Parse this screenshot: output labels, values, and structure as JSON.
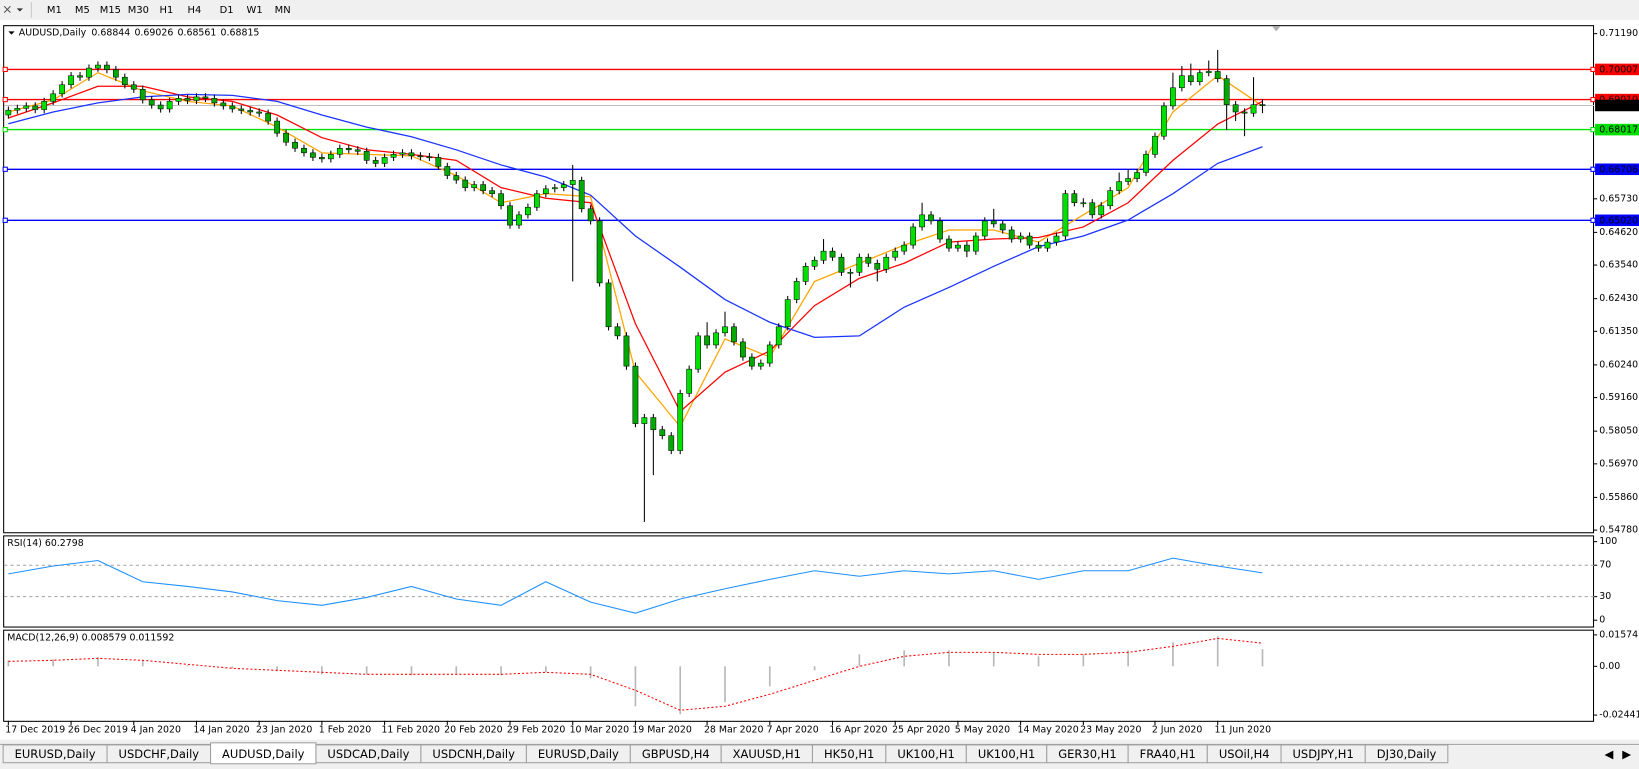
{
  "toolbar": [
    "M1",
    "M5",
    "M15",
    "M30",
    "H1",
    "H4",
    "D1",
    "W1",
    "MN"
  ],
  "tabs": [
    "EURUSD,Daily",
    "USDCHF,Daily",
    "AUDUSD,Daily",
    "USDCAD,Daily",
    "USDCNH,Daily",
    "EURUSD,Daily",
    "GBPUSD,H4",
    "XAUUSD,H1",
    "HK50,H1",
    "UK100,H1",
    "UK100,H1",
    "GER30,H1",
    "FRA40,H1",
    "USOil,H4",
    "USDJPY,H1",
    "DJ30,Daily"
  ],
  "active_tab": 2,
  "chart_data": [
    {
      "type": "candlestick",
      "title": "AUDUSD,Daily",
      "categories": [
        "17 Dec 2019",
        null,
        null,
        null,
        null,
        null,
        null,
        "26 Dec 2019",
        null,
        null,
        null,
        null,
        null,
        null,
        "4 Jan 2020",
        null,
        null,
        null,
        null,
        null,
        null,
        "14 Jan 2020",
        null,
        null,
        null,
        null,
        null,
        null,
        "23 Jan 2020",
        null,
        null,
        null,
        null,
        null,
        null,
        "1 Feb 2020",
        null,
        null,
        null,
        null,
        null,
        null,
        "11 Feb 2020",
        null,
        null,
        null,
        null,
        null,
        null,
        "20 Feb 2020",
        null,
        null,
        null,
        null,
        null,
        null,
        "29 Feb 2020",
        null,
        null,
        null,
        null,
        null,
        null,
        "10 Mar 2020",
        null,
        null,
        null,
        null,
        null,
        null,
        "19 Mar 2020",
        null,
        null,
        null,
        null,
        null,
        null,
        null,
        "28 Mar 2020",
        null,
        null,
        null,
        null,
        null,
        null,
        "7 Apr 2020",
        null,
        null,
        null,
        null,
        null,
        null,
        "16 Apr 2020",
        null,
        null,
        null,
        null,
        null,
        null,
        "25 Apr 2020",
        null,
        null,
        null,
        null,
        null,
        null,
        "5 May 2020",
        null,
        null,
        null,
        null,
        null,
        null,
        "14 May 2020",
        null,
        null,
        null,
        null,
        null,
        null,
        "23 May 2020",
        null,
        null,
        null,
        null,
        null,
        null,
        null,
        "2 Jun 2020",
        null,
        null,
        null,
        null,
        null,
        null,
        "11 Jun 2020",
        null,
        null,
        null,
        null,
        null
      ],
      "open": [
        0.685,
        0.6866,
        0.6872,
        0.688,
        0.6868,
        0.6895,
        0.692,
        0.695,
        0.698,
        0.6975,
        0.7005,
        0.7015,
        0.7,
        0.6975,
        0.695,
        0.6935,
        0.69,
        0.6883,
        0.687,
        0.6895,
        0.6905,
        0.6898,
        0.691,
        0.6905,
        0.689,
        0.688,
        0.687,
        0.6865,
        0.686,
        0.6856,
        0.683,
        0.679,
        0.676,
        0.674,
        0.6725,
        0.671,
        0.6705,
        0.672,
        0.674,
        0.6735,
        0.673,
        0.67,
        0.669,
        0.671,
        0.672,
        0.6725,
        0.6715,
        0.6712,
        0.671,
        0.668,
        0.665,
        0.6635,
        0.661,
        0.662,
        0.66,
        0.659,
        0.655,
        0.6486,
        0.652,
        0.6545,
        0.659,
        0.6606,
        0.661,
        0.662,
        0.6634,
        0.654,
        0.65,
        0.6295,
        0.615,
        0.612,
        0.602,
        0.583,
        0.585,
        0.581,
        0.579,
        0.5741,
        0.593,
        0.601,
        0.612,
        0.609,
        0.613,
        0.615,
        0.61,
        0.605,
        0.602,
        0.603,
        0.609,
        0.615,
        0.624,
        0.63,
        0.635,
        0.637,
        0.64,
        0.638,
        0.633,
        0.633,
        0.638,
        0.636,
        0.634,
        0.638,
        0.64,
        0.642,
        0.648,
        0.652,
        0.65,
        0.644,
        0.641,
        0.642,
        0.64,
        0.645,
        0.65,
        0.649,
        0.647,
        0.644,
        0.645,
        0.642,
        0.641,
        0.643,
        0.645,
        0.659,
        0.656,
        0.656,
        0.652,
        0.655,
        0.66,
        0.663,
        0.664,
        0.666,
        0.672,
        0.678,
        0.688,
        0.694,
        0.698,
        0.696,
        0.699,
        0.6994,
        0.697,
        0.6884,
        0.686,
        0.6856,
        0.68844
      ],
      "high": [
        0.6878,
        0.6884,
        0.6892,
        0.6892,
        0.6907,
        0.6932,
        0.6962,
        0.6992,
        0.6992,
        0.7017,
        0.7027,
        0.7027,
        0.7012,
        0.6987,
        0.6962,
        0.6947,
        0.6912,
        0.6895,
        0.6907,
        0.6917,
        0.6917,
        0.6922,
        0.6922,
        0.6917,
        0.6902,
        0.6892,
        0.6882,
        0.6877,
        0.6872,
        0.6868,
        0.6842,
        0.6802,
        0.6772,
        0.6752,
        0.6737,
        0.6722,
        0.6732,
        0.6752,
        0.6752,
        0.6747,
        0.6742,
        0.6712,
        0.6722,
        0.6732,
        0.6737,
        0.6737,
        0.6727,
        0.6724,
        0.6722,
        0.6692,
        0.6662,
        0.6647,
        0.6632,
        0.6632,
        0.6612,
        0.6602,
        0.6562,
        0.6532,
        0.6557,
        0.6602,
        0.6618,
        0.6622,
        0.6632,
        0.6685,
        0.6646,
        0.6552,
        0.6512,
        0.6307,
        0.6162,
        0.6132,
        0.6032,
        0.5862,
        0.5862,
        0.5822,
        0.5802,
        0.5942,
        0.6022,
        0.6132,
        0.6165,
        0.6142,
        0.62,
        0.6162,
        0.6112,
        0.6062,
        0.6042,
        0.6102,
        0.6162,
        0.6252,
        0.6312,
        0.6362,
        0.6382,
        0.644,
        0.6412,
        0.6392,
        0.6342,
        0.6392,
        0.6392,
        0.6372,
        0.6392,
        0.6412,
        0.6432,
        0.6492,
        0.656,
        0.6532,
        0.6512,
        0.6452,
        0.6432,
        0.6432,
        0.6462,
        0.6512,
        0.654,
        0.6502,
        0.6482,
        0.6462,
        0.6462,
        0.6432,
        0.6442,
        0.6462,
        0.6602,
        0.6602,
        0.6575,
        0.6572,
        0.6562,
        0.6612,
        0.666,
        0.667,
        0.6672,
        0.6732,
        0.6792,
        0.6892,
        0.699,
        0.7012,
        0.702,
        0.7002,
        0.703,
        0.7065,
        0.6982,
        0.6896,
        0.6872,
        0.6975,
        0.69026
      ],
      "low": [
        0.6838,
        0.6854,
        0.686,
        0.6856,
        0.6856,
        0.6883,
        0.6908,
        0.6938,
        0.6963,
        0.6963,
        0.6993,
        0.6988,
        0.6963,
        0.6938,
        0.6923,
        0.6888,
        0.6871,
        0.6858,
        0.6858,
        0.6883,
        0.6886,
        0.6886,
        0.6893,
        0.6878,
        0.6868,
        0.6858,
        0.6853,
        0.6848,
        0.6844,
        0.6818,
        0.6778,
        0.6748,
        0.6728,
        0.6713,
        0.6698,
        0.6693,
        0.6693,
        0.6708,
        0.6723,
        0.6718,
        0.6688,
        0.6678,
        0.6678,
        0.6698,
        0.6708,
        0.6703,
        0.67,
        0.6698,
        0.6668,
        0.6638,
        0.6623,
        0.6598,
        0.6598,
        0.6588,
        0.6578,
        0.6538,
        0.6474,
        0.6474,
        0.6508,
        0.6533,
        0.6578,
        0.6594,
        0.6598,
        0.63,
        0.6528,
        0.6488,
        0.6283,
        0.6138,
        0.6108,
        0.6008,
        0.5818,
        0.5505,
        0.566,
        0.5778,
        0.5729,
        0.5729,
        0.5918,
        0.5998,
        0.6078,
        0.6078,
        0.6118,
        0.6088,
        0.6038,
        0.6008,
        0.6008,
        0.6018,
        0.6078,
        0.6138,
        0.6228,
        0.6288,
        0.6338,
        0.6358,
        0.6368,
        0.6318,
        0.628,
        0.6318,
        0.6348,
        0.63,
        0.6328,
        0.6368,
        0.6388,
        0.6408,
        0.6468,
        0.6488,
        0.6428,
        0.6398,
        0.6398,
        0.638,
        0.6388,
        0.6438,
        0.6478,
        0.6458,
        0.6428,
        0.6428,
        0.6408,
        0.6398,
        0.6398,
        0.6418,
        0.6438,
        0.6548,
        0.6545,
        0.6508,
        0.6508,
        0.6538,
        0.6588,
        0.6618,
        0.6628,
        0.6648,
        0.6708,
        0.6768,
        0.6868,
        0.6928,
        0.6948,
        0.6948,
        0.6978,
        0.6958,
        0.68,
        0.683,
        0.678,
        0.6844,
        0.68561
      ],
      "close": [
        0.6866,
        0.6872,
        0.688,
        0.6868,
        0.6895,
        0.692,
        0.695,
        0.698,
        0.6975,
        0.7005,
        0.7015,
        0.7,
        0.6975,
        0.695,
        0.6935,
        0.69,
        0.6883,
        0.687,
        0.6895,
        0.6905,
        0.6898,
        0.691,
        0.6905,
        0.689,
        0.688,
        0.687,
        0.6865,
        0.686,
        0.6856,
        0.683,
        0.679,
        0.676,
        0.674,
        0.6725,
        0.671,
        0.6705,
        0.672,
        0.674,
        0.6735,
        0.673,
        0.67,
        0.669,
        0.671,
        0.672,
        0.6725,
        0.6715,
        0.6712,
        0.671,
        0.668,
        0.665,
        0.6635,
        0.661,
        0.662,
        0.66,
        0.659,
        0.655,
        0.6486,
        0.652,
        0.6545,
        0.659,
        0.6606,
        0.661,
        0.662,
        0.6634,
        0.654,
        0.65,
        0.6295,
        0.615,
        0.612,
        0.602,
        0.583,
        0.585,
        0.581,
        0.579,
        0.5741,
        0.593,
        0.601,
        0.612,
        0.609,
        0.613,
        0.615,
        0.61,
        0.605,
        0.602,
        0.603,
        0.609,
        0.615,
        0.624,
        0.63,
        0.635,
        0.637,
        0.64,
        0.638,
        0.633,
        0.633,
        0.638,
        0.636,
        0.634,
        0.638,
        0.64,
        0.642,
        0.648,
        0.652,
        0.65,
        0.644,
        0.641,
        0.642,
        0.64,
        0.645,
        0.65,
        0.649,
        0.647,
        0.644,
        0.645,
        0.642,
        0.641,
        0.643,
        0.645,
        0.659,
        0.656,
        0.656,
        0.652,
        0.655,
        0.66,
        0.663,
        0.664,
        0.666,
        0.672,
        0.678,
        0.688,
        0.694,
        0.698,
        0.696,
        0.699,
        0.6994,
        0.697,
        0.6884,
        0.686,
        0.6856,
        0.6884,
        0.68815
      ],
      "up_color": "#00e000",
      "down_color": "#00a800",
      "wick_color": "#000000",
      "lines": [
        {
          "color": "#ffa500",
          "x": [
            0,
            5,
            10,
            15,
            20,
            25,
            30,
            35,
            40,
            45,
            50,
            55,
            60,
            65,
            70,
            75,
            80,
            85,
            90,
            95,
            100,
            105,
            110,
            115,
            120,
            125,
            130,
            135,
            140
          ],
          "values": [
            0.686,
            0.69,
            0.699,
            0.693,
            0.6895,
            0.688,
            0.681,
            0.6725,
            0.672,
            0.6715,
            0.665,
            0.656,
            0.659,
            0.658,
            0.6,
            0.582,
            0.611,
            0.605,
            0.63,
            0.636,
            0.642,
            0.647,
            0.647,
            0.643,
            0.652,
            0.661,
            0.686,
            0.698,
            0.688
          ]
        },
        {
          "color": "#ff0000",
          "x": [
            0,
            5,
            10,
            15,
            20,
            25,
            30,
            35,
            40,
            45,
            50,
            55,
            60,
            65,
            70,
            75,
            80,
            85,
            90,
            95,
            100,
            105,
            110,
            115,
            120,
            125,
            130,
            135,
            140
          ],
          "values": [
            0.684,
            0.689,
            0.6945,
            0.6945,
            0.691,
            0.6895,
            0.685,
            0.6775,
            0.6735,
            0.672,
            0.67,
            0.661,
            0.6575,
            0.656,
            0.616,
            0.587,
            0.6,
            0.607,
            0.622,
            0.631,
            0.636,
            0.643,
            0.644,
            0.6445,
            0.648,
            0.656,
            0.67,
            0.682,
            0.6895
          ]
        },
        {
          "color": "#1a33ff",
          "x": [
            0,
            5,
            10,
            15,
            20,
            25,
            30,
            35,
            40,
            45,
            50,
            55,
            60,
            65,
            70,
            75,
            80,
            85,
            90,
            95,
            100,
            105,
            110,
            115,
            120,
            125,
            130,
            135,
            140
          ],
          "values": [
            0.6821,
            0.686,
            0.689,
            0.691,
            0.6918,
            0.6915,
            0.6895,
            0.685,
            0.681,
            0.6778,
            0.6735,
            0.6685,
            0.6645,
            0.6585,
            0.645,
            0.6347,
            0.624,
            0.6165,
            0.6115,
            0.612,
            0.6215,
            0.628,
            0.635,
            0.6415,
            0.645,
            0.6503,
            0.659,
            0.669,
            0.6745
          ]
        }
      ],
      "levels": [
        {
          "value": 0.70007,
          "color": "#ff0000"
        },
        {
          "value": 0.6901,
          "label": "0.69010",
          "color": "#ff0000"
        },
        {
          "value": 0.68017,
          "color": "#00e000"
        },
        {
          "value": 0.66706,
          "color": "#0000ff"
        },
        {
          "value": 0.6502,
          "label": "0.65020",
          "color": "#0000ff"
        }
      ],
      "price_line_color": "#c0c0c0",
      "ylim": [
        0.5471,
        0.7147
      ],
      "yticks": [
        {
          "value": 0.7119,
          "label": "0.71190"
        },
        {
          "value": 0.6573,
          "label": "0.65730"
        },
        {
          "value": 0.6462,
          "label": "0.64620"
        },
        {
          "value": 0.6354,
          "label": "0.63540"
        },
        {
          "value": 0.6243,
          "label": "0.62430"
        },
        {
          "value": 0.6135,
          "label": "0.61350"
        },
        {
          "value": 0.6024,
          "label": "0.60240"
        },
        {
          "value": 0.5916,
          "label": "0.59160"
        },
        {
          "value": 0.5805,
          "label": "0.58050"
        },
        {
          "value": 0.5697,
          "label": "0.56970"
        },
        {
          "value": 0.5586,
          "label": "0.55860"
        },
        {
          "value": 0.5478,
          "label": "0.54780"
        }
      ]
    },
    {
      "type": "line",
      "title": "RSI(14) 60.2798",
      "x": [
        0,
        5,
        10,
        15,
        20,
        25,
        30,
        35,
        40,
        45,
        50,
        55,
        60,
        65,
        70,
        75,
        80,
        85,
        90,
        95,
        100,
        105,
        110,
        115,
        120,
        125,
        130,
        135,
        140
      ],
      "series": [
        {
          "color": "#1e90ff",
          "values": [
            59,
            69,
            76,
            49,
            43,
            36,
            25,
            19,
            29,
            43,
            27,
            19,
            49,
            23,
            9,
            27,
            40,
            52,
            63,
            56,
            63,
            59,
            63,
            52,
            63,
            63,
            79,
            69,
            60.2798
          ]
        }
      ],
      "levels": [
        70,
        30
      ],
      "ylim": [
        -8,
        108
      ],
      "yticks": [
        100,
        70,
        30,
        0
      ]
    },
    {
      "type": "bar",
      "title": "MACD(12,26,9) 0.008579 0.011592",
      "x": [
        0,
        5,
        10,
        15,
        20,
        25,
        30,
        35,
        40,
        45,
        50,
        55,
        60,
        65,
        70,
        75,
        80,
        85,
        90,
        95,
        100,
        105,
        110,
        115,
        120,
        125,
        130,
        135,
        140
      ],
      "series": [
        {
          "type": "bar",
          "color": "#b8b8b8",
          "values": [
            0.003,
            0.0035,
            0.0045,
            0.003,
            0.0005,
            -0.001,
            -0.0025,
            -0.004,
            -0.004,
            -0.0045,
            -0.004,
            -0.0045,
            -0.003,
            -0.006,
            -0.02,
            -0.024,
            -0.018,
            -0.01,
            -0.002,
            0.006,
            0.008,
            0.008,
            0.007,
            0.005,
            0.006,
            0.008,
            0.012,
            0.015,
            0.008579
          ]
        },
        {
          "type": "line",
          "color": "#ff0000",
          "values": [
            0.0025,
            0.003,
            0.004,
            0.003,
            0.001,
            -0.001,
            -0.002,
            -0.003,
            -0.004,
            -0.004,
            -0.004,
            -0.004,
            -0.003,
            -0.004,
            -0.012,
            -0.022,
            -0.02,
            -0.014,
            -0.007,
            0.0,
            0.005,
            0.007,
            0.007,
            0.006,
            0.006,
            0.007,
            0.01,
            0.014,
            0.011592
          ]
        }
      ],
      "ylim": [
        -0.027285,
        0.018365
      ],
      "yticks": [
        0.015741,
        {
          "value": 0,
          "label": "0.00"
        },
        -0.024412
      ]
    }
  ]
}
